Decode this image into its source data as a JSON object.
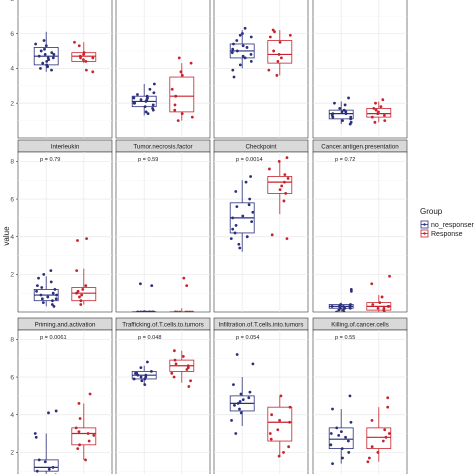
{
  "chart_data": {
    "type": "boxplot",
    "ylabel": "value",
    "ylim": [
      0,
      8.5
    ],
    "y_ticks": [
      0,
      2,
      4,
      6,
      8
    ],
    "grid": true,
    "legend": {
      "title": "Group",
      "placement": "right",
      "entries": [
        {
          "name": "no_response",
          "label": "no_responser",
          "color": "#2b2f7c"
        },
        {
          "name": "Response",
          "label": "Response",
          "color": "#c8232c"
        }
      ]
    },
    "colors": {
      "no_response": "#2b2f7c",
      "Response": "#c8232c"
    },
    "panels": [
      {
        "row": 0,
        "col": 0,
        "title": "",
        "p": "",
        "no_response": {
          "stats": [
            3.8,
            4.2,
            4.7,
            5.2,
            6.1
          ],
          "points": [
            4.7,
            3.9,
            4.1,
            4.8,
            5.0,
            4.6,
            4.9,
            5.3,
            4.4,
            4.2,
            5.4,
            4.6,
            4.5,
            5.6,
            4.8,
            4.3,
            5.1,
            4.0
          ]
        },
        "Response": {
          "stats": [
            4.3,
            4.4,
            4.7,
            4.9,
            5.5
          ],
          "points": [
            3.8,
            4.5,
            4.6,
            4.8,
            5.5,
            4.6,
            5.3,
            4.7,
            3.9,
            4.4,
            4.9
          ]
        }
      },
      {
        "row": 0,
        "col": 1,
        "title": "",
        "p": "",
        "no_response": {
          "stats": [
            1.3,
            1.8,
            2.1,
            2.4,
            3.1
          ],
          "points": [
            1.5,
            2.0,
            2.2,
            1.7,
            2.5,
            1.9,
            2.3,
            2.8,
            2.0,
            1.4,
            2.6,
            2.1,
            1.8,
            2.4,
            2.2,
            3.1,
            1.6,
            2.3
          ]
        },
        "Response": {
          "stats": [
            1.0,
            1.5,
            2.4,
            3.5,
            4.3
          ],
          "points": [
            4.6,
            4.3,
            3.8,
            2.4,
            1.6,
            1.2,
            1.0,
            1.9,
            3.6,
            2.8,
            1.4
          ]
        }
      },
      {
        "row": 0,
        "col": 2,
        "title": "",
        "p": "",
        "no_response": {
          "stats": [
            4.0,
            4.6,
            5.0,
            5.4,
            6.2
          ],
          "points": [
            6.3,
            6.0,
            5.8,
            5.2,
            5.4,
            5.0,
            4.8,
            4.6,
            4.4,
            3.9,
            3.5,
            5.1,
            4.9,
            5.6,
            4.7,
            5.3,
            4.2,
            5.9
          ]
        },
        "Response": {
          "stats": [
            3.6,
            4.3,
            4.8,
            5.6,
            6.2
          ],
          "points": [
            6.1,
            5.8,
            5.5,
            5.0,
            4.8,
            4.4,
            3.9,
            3.6,
            5.9,
            4.6,
            6.2
          ]
        }
      },
      {
        "row": 0,
        "col": 3,
        "title": "",
        "p": "",
        "no_response": {
          "stats": [
            0.8,
            1.1,
            1.4,
            1.6,
            2.1
          ],
          "points": [
            1.0,
            1.2,
            1.4,
            1.5,
            1.7,
            2.3,
            1.9,
            1.3,
            0.9,
            1.1,
            1.6,
            1.4,
            2.0,
            1.2,
            1.5,
            0.8
          ]
        },
        "Response": {
          "stats": [
            0.9,
            1.2,
            1.4,
            1.7,
            2.1
          ],
          "points": [
            1.8,
            2.2,
            1.5,
            1.3,
            1.0,
            1.6,
            2.0,
            1.2,
            1.4,
            0.9,
            1.7
          ]
        }
      },
      {
        "row": 1,
        "col": 0,
        "title": "Interleukin",
        "p": "p = 0.79",
        "no_response": {
          "stats": [
            0.3,
            0.6,
            0.9,
            1.2,
            1.9
          ],
          "points": [
            2.2,
            2.0,
            1.6,
            1.3,
            1.1,
            1.0,
            0.9,
            0.8,
            0.7,
            0.6,
            0.5,
            0.4,
            1.4,
            1.2,
            0.9,
            1.8,
            0.7,
            0.3
          ]
        },
        "Response": {
          "stats": [
            0.4,
            0.6,
            1.0,
            1.3,
            2.3
          ],
          "points": [
            3.9,
            3.8,
            2.2,
            1.4,
            1.2,
            1.0,
            0.9,
            0.8,
            0.6,
            1.1,
            0.4
          ]
        }
      },
      {
        "row": 1,
        "col": 1,
        "title": "Tumor.necrosis.factor",
        "p": "p = 0.59",
        "no_response": {
          "stats": [
            0.0,
            0.0,
            0.0,
            0.0,
            0.1
          ],
          "points": [
            1.5,
            1.4,
            0.0,
            0.0,
            0.0,
            0.0,
            0.0,
            0.0,
            0.0,
            0.0,
            0.0,
            0.0,
            0.0,
            0.0,
            0.0,
            0.0
          ]
        },
        "Response": {
          "stats": [
            0.0,
            0.0,
            0.0,
            0.0,
            0.2
          ],
          "points": [
            1.8,
            1.4,
            0.0,
            0.0,
            0.0,
            0.0,
            0.0,
            0.0,
            0.0,
            0.0,
            0.0
          ]
        }
      },
      {
        "row": 1,
        "col": 2,
        "title": "Checkpoint",
        "p": "p = 0.0014",
        "no_response": {
          "stats": [
            3.2,
            4.2,
            5.0,
            5.8,
            7.0
          ],
          "points": [
            7.2,
            6.9,
            6.0,
            5.6,
            5.3,
            5.0,
            4.8,
            4.4,
            4.2,
            4.0,
            3.6,
            3.4,
            5.7,
            4.6,
            5.1,
            6.4,
            3.9
          ]
        },
        "Response": {
          "stats": [
            5.2,
            6.3,
            6.9,
            7.2,
            8.0
          ],
          "points": [
            8.2,
            8.0,
            7.6,
            7.3,
            7.1,
            6.9,
            6.7,
            6.5,
            6.3,
            5.9,
            4.1,
            3.9
          ]
        }
      },
      {
        "row": 1,
        "col": 3,
        "title": "Cancer.antigen.presentation",
        "p": "p = 0.72",
        "no_response": {
          "stats": [
            0.0,
            0.2,
            0.3,
            0.4,
            0.5
          ],
          "points": [
            1.2,
            1.1,
            0.4,
            0.3,
            0.2,
            0.3,
            0.1,
            0.0,
            0.3,
            0.4,
            0.2,
            0.3,
            0.1,
            0.2,
            0.0
          ]
        },
        "Response": {
          "stats": [
            0.0,
            0.1,
            0.3,
            0.5,
            0.9
          ],
          "points": [
            1.9,
            1.5,
            0.8,
            0.5,
            0.3,
            0.2,
            0.1,
            0.0,
            0.4,
            0.2,
            0.3
          ]
        }
      },
      {
        "row": 2,
        "col": 0,
        "title": "Priming.and.activation",
        "p": "p = 0.0061",
        "no_response": {
          "stats": [
            0.5,
            1.0,
            1.2,
            1.6,
            3.0
          ],
          "points": [
            4.2,
            4.1,
            3.0,
            2.8,
            1.6,
            1.5,
            1.2,
            1.1,
            1.0,
            0.8,
            0.7,
            0.5
          ]
        },
        "Response": {
          "stats": [
            1.6,
            2.4,
            3.0,
            3.3,
            4.6
          ],
          "points": [
            5.1,
            4.6,
            3.8,
            3.3,
            3.1,
            3.0,
            2.9,
            2.6,
            2.4,
            2.2,
            1.6
          ]
        }
      },
      {
        "row": 2,
        "col": 1,
        "title": "Trafficking.of.T.cells.to.tumors",
        "p": "p = 0.048",
        "no_response": {
          "stats": [
            5.6,
            5.9,
            6.1,
            6.3,
            6.6
          ],
          "points": [
            6.8,
            6.5,
            6.3,
            6.2,
            6.1,
            6.0,
            5.9,
            5.8,
            5.6,
            6.2,
            6.0,
            6.1,
            5.9
          ]
        },
        "Response": {
          "stats": [
            5.7,
            6.3,
            6.6,
            6.9,
            7.4
          ],
          "points": [
            7.4,
            7.1,
            6.9,
            6.7,
            6.6,
            6.5,
            6.4,
            6.2,
            6.0,
            5.8,
            5.5
          ]
        }
      },
      {
        "row": 2,
        "col": 2,
        "title": "Infiltration.of.T.cells.into.tumors",
        "p": "p = 0.054",
        "no_response": {
          "stats": [
            3.4,
            4.2,
            4.6,
            5.0,
            6.0
          ],
          "points": [
            7.2,
            6.7,
            5.6,
            5.1,
            4.9,
            4.7,
            4.6,
            4.5,
            4.3,
            4.1,
            3.7,
            3.0,
            4.8,
            5.2
          ]
        },
        "Response": {
          "stats": [
            1.8,
            2.6,
            3.6,
            4.4,
            5.0
          ],
          "points": [
            5.0,
            4.4,
            4.0,
            3.7,
            3.6,
            3.2,
            3.0,
            2.7,
            2.3,
            2.0,
            1.8
          ]
        }
      },
      {
        "row": 2,
        "col": 3,
        "title": "Killing.of.cancer.cells",
        "p": "p = 0.55",
        "no_response": {
          "stats": [
            1.4,
            2.2,
            2.7,
            3.3,
            4.3
          ],
          "points": [
            5.0,
            4.3,
            3.6,
            3.3,
            3.0,
            2.8,
            2.6,
            2.4,
            2.2,
            2.0,
            1.7,
            1.4,
            2.9,
            3.1
          ]
        },
        "Response": {
          "stats": [
            1.5,
            2.2,
            2.8,
            3.3,
            4.4
          ],
          "points": [
            4.9,
            4.4,
            3.7,
            3.2,
            3.0,
            2.8,
            2.6,
            2.3,
            2.0,
            1.7,
            1.5
          ]
        }
      }
    ]
  }
}
